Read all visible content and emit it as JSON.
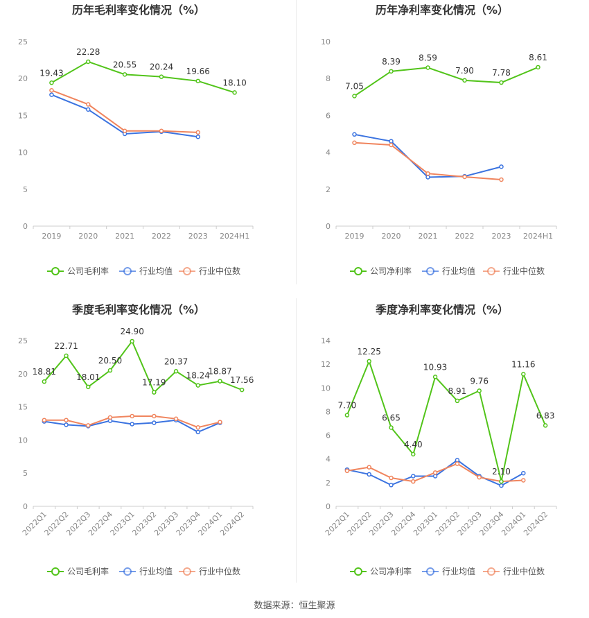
{
  "source": "数据来源：恒生聚源",
  "colors": {
    "company": "#52c41a",
    "avg": "#3b73e0",
    "median": "#f0855e"
  },
  "legend": {
    "avg": "行业均值",
    "median": "行业中位数"
  },
  "chart_data": [
    {
      "type": "line",
      "title": "历年毛利率变化情况（%）",
      "categories": [
        "2019",
        "2020",
        "2021",
        "2022",
        "2023",
        "2024H1"
      ],
      "ylim": [
        0,
        25
      ],
      "yticks": [
        0,
        5,
        10,
        15,
        20,
        25
      ],
      "grid": false,
      "legend_position": "bottom",
      "series": [
        {
          "name": "公司毛利率",
          "key": "company",
          "values": [
            19.43,
            22.28,
            20.55,
            20.24,
            19.66,
            18.1
          ],
          "labels": [
            "19.43",
            "22.28",
            "20.55",
            "20.24",
            "19.66",
            "18.10"
          ]
        },
        {
          "name": "行业均值",
          "key": "avg",
          "values": [
            17.8,
            15.8,
            12.5,
            12.8,
            12.1,
            null
          ]
        },
        {
          "name": "行业中位数",
          "key": "median",
          "values": [
            18.4,
            16.5,
            12.9,
            12.9,
            12.7,
            null
          ]
        }
      ]
    },
    {
      "type": "line",
      "title": "历年净利率变化情况（%）",
      "categories": [
        "2019",
        "2020",
        "2021",
        "2022",
        "2023",
        "2024H1"
      ],
      "ylim": [
        0,
        10
      ],
      "yticks": [
        0,
        2,
        4,
        6,
        8,
        10
      ],
      "grid": false,
      "legend_position": "bottom",
      "series": [
        {
          "name": "公司净利率",
          "key": "company",
          "values": [
            7.05,
            8.39,
            8.59,
            7.9,
            7.78,
            8.61
          ],
          "labels": [
            "7.05",
            "8.39",
            "8.59",
            "7.90",
            "7.78",
            "8.61"
          ]
        },
        {
          "name": "行业均值",
          "key": "avg",
          "values": [
            4.97,
            4.6,
            2.65,
            2.7,
            3.22,
            null
          ]
        },
        {
          "name": "行业中位数",
          "key": "median",
          "values": [
            4.52,
            4.4,
            2.85,
            2.67,
            2.52,
            null
          ]
        }
      ]
    },
    {
      "type": "line",
      "title": "季度毛利率变化情况（%）",
      "categories": [
        "2022Q1",
        "2022Q2",
        "2022Q3",
        "2022Q4",
        "2023Q1",
        "2023Q2",
        "2023Q3",
        "2023Q4",
        "2024Q1",
        "2024Q2"
      ],
      "ylim": [
        0,
        25
      ],
      "yticks": [
        0,
        5,
        10,
        15,
        20,
        25
      ],
      "grid": false,
      "legend_position": "bottom",
      "series": [
        {
          "name": "公司毛利率",
          "key": "company",
          "values": [
            18.81,
            22.71,
            18.01,
            20.5,
            24.9,
            17.19,
            20.37,
            18.24,
            18.87,
            17.56
          ],
          "labels": [
            "18.81",
            "22.71",
            "18.01",
            "20.50",
            "24.90",
            "17.19",
            "20.37",
            "18.24",
            "18.87",
            "17.56"
          ]
        },
        {
          "name": "行业均值",
          "key": "avg",
          "values": [
            12.8,
            12.3,
            12.1,
            12.9,
            12.4,
            12.6,
            13.0,
            11.2,
            12.6,
            null
          ]
        },
        {
          "name": "行业中位数",
          "key": "median",
          "values": [
            13.0,
            13.0,
            12.2,
            13.4,
            13.6,
            13.6,
            13.2,
            11.9,
            12.7,
            null
          ]
        }
      ]
    },
    {
      "type": "line",
      "title": "季度净利率变化情况（%）",
      "categories": [
        "2022Q1",
        "2022Q2",
        "2022Q3",
        "2022Q4",
        "2023Q1",
        "2023Q2",
        "2023Q3",
        "2023Q4",
        "2024Q1",
        "2024Q2"
      ],
      "ylim": [
        0,
        14
      ],
      "yticks": [
        0,
        2,
        4,
        6,
        8,
        10,
        12,
        14
      ],
      "grid": false,
      "legend_position": "bottom",
      "series": [
        {
          "name": "公司净利率",
          "key": "company",
          "values": [
            7.7,
            12.25,
            6.65,
            4.4,
            10.93,
            8.91,
            9.76,
            2.1,
            11.16,
            6.83
          ],
          "labels": [
            "7.70",
            "12.25",
            "6.65",
            "4.40",
            "10.93",
            "8.91",
            "9.76",
            "2.10",
            "11.16",
            "6.83"
          ]
        },
        {
          "name": "行业均值",
          "key": "avg",
          "values": [
            3.1,
            2.7,
            1.8,
            2.55,
            2.55,
            3.9,
            2.55,
            1.75,
            2.8,
            null
          ]
        },
        {
          "name": "行业中位数",
          "key": "median",
          "values": [
            3.0,
            3.3,
            2.4,
            2.1,
            2.85,
            3.6,
            2.45,
            2.1,
            2.2,
            null
          ]
        }
      ]
    }
  ]
}
